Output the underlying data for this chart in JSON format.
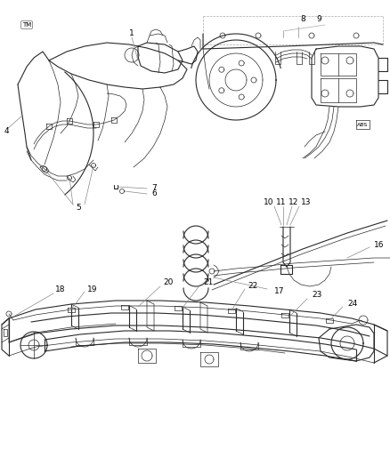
{
  "bg_color": "#ffffff",
  "fig_width": 4.39,
  "fig_height": 5.33,
  "dpi": 100,
  "line_color": "#2a2a2a",
  "label_fontsize": 6.5,
  "logo_text": "TM"
}
